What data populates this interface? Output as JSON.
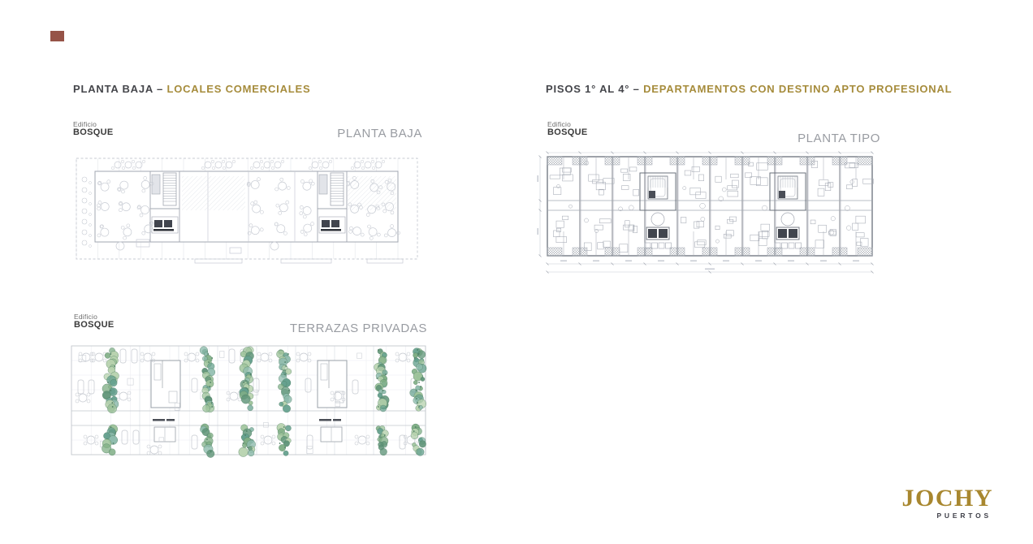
{
  "slide": {
    "headings": {
      "left": {
        "prefix": "PLANTA BAJA – ",
        "highlight": "LOCALES COMERCIALES"
      },
      "right": {
        "prefix": "PISOS 1° AL 4° – ",
        "highlight": "DEPARTAMENTOS CON DESTINO APTO PROFESIONAL"
      }
    }
  },
  "plans": {
    "planta_baja": {
      "building_small": "Edificio",
      "building_name": "BOSQUE",
      "title": "PLANTA BAJA"
    },
    "planta_tipo": {
      "building_small": "Edificio",
      "building_name": "BOSQUE",
      "title": "PLANTA TIPO"
    },
    "terrazas": {
      "building_small": "Edificio",
      "building_name": "BOSQUE",
      "title": "TERRAZAS PRIVADAS"
    }
  },
  "logo": {
    "name": "JOCHY",
    "subtitle": "PUERTOS"
  },
  "colors": {
    "heading_dark": "#45464b",
    "accent_gold": "#a68c3c",
    "logo_gold": "#a8872f",
    "logo_sub": "#3f4049",
    "plan_title_gray": "#999ca2",
    "corner_mark": "#8d4437",
    "plan_line_faint": "#e7e9ee",
    "plan_line_light": "#c7cbd3",
    "plan_line_mid": "#a2a7b1",
    "plan_line_dark": "#6a707b",
    "plan_fill_dark": "#41454e",
    "vegetation": [
      "#7fae85",
      "#9ec39b",
      "#66a18f",
      "#b7d2ae",
      "#5f9478",
      "#8fbcae",
      "#4d7d62"
    ]
  }
}
